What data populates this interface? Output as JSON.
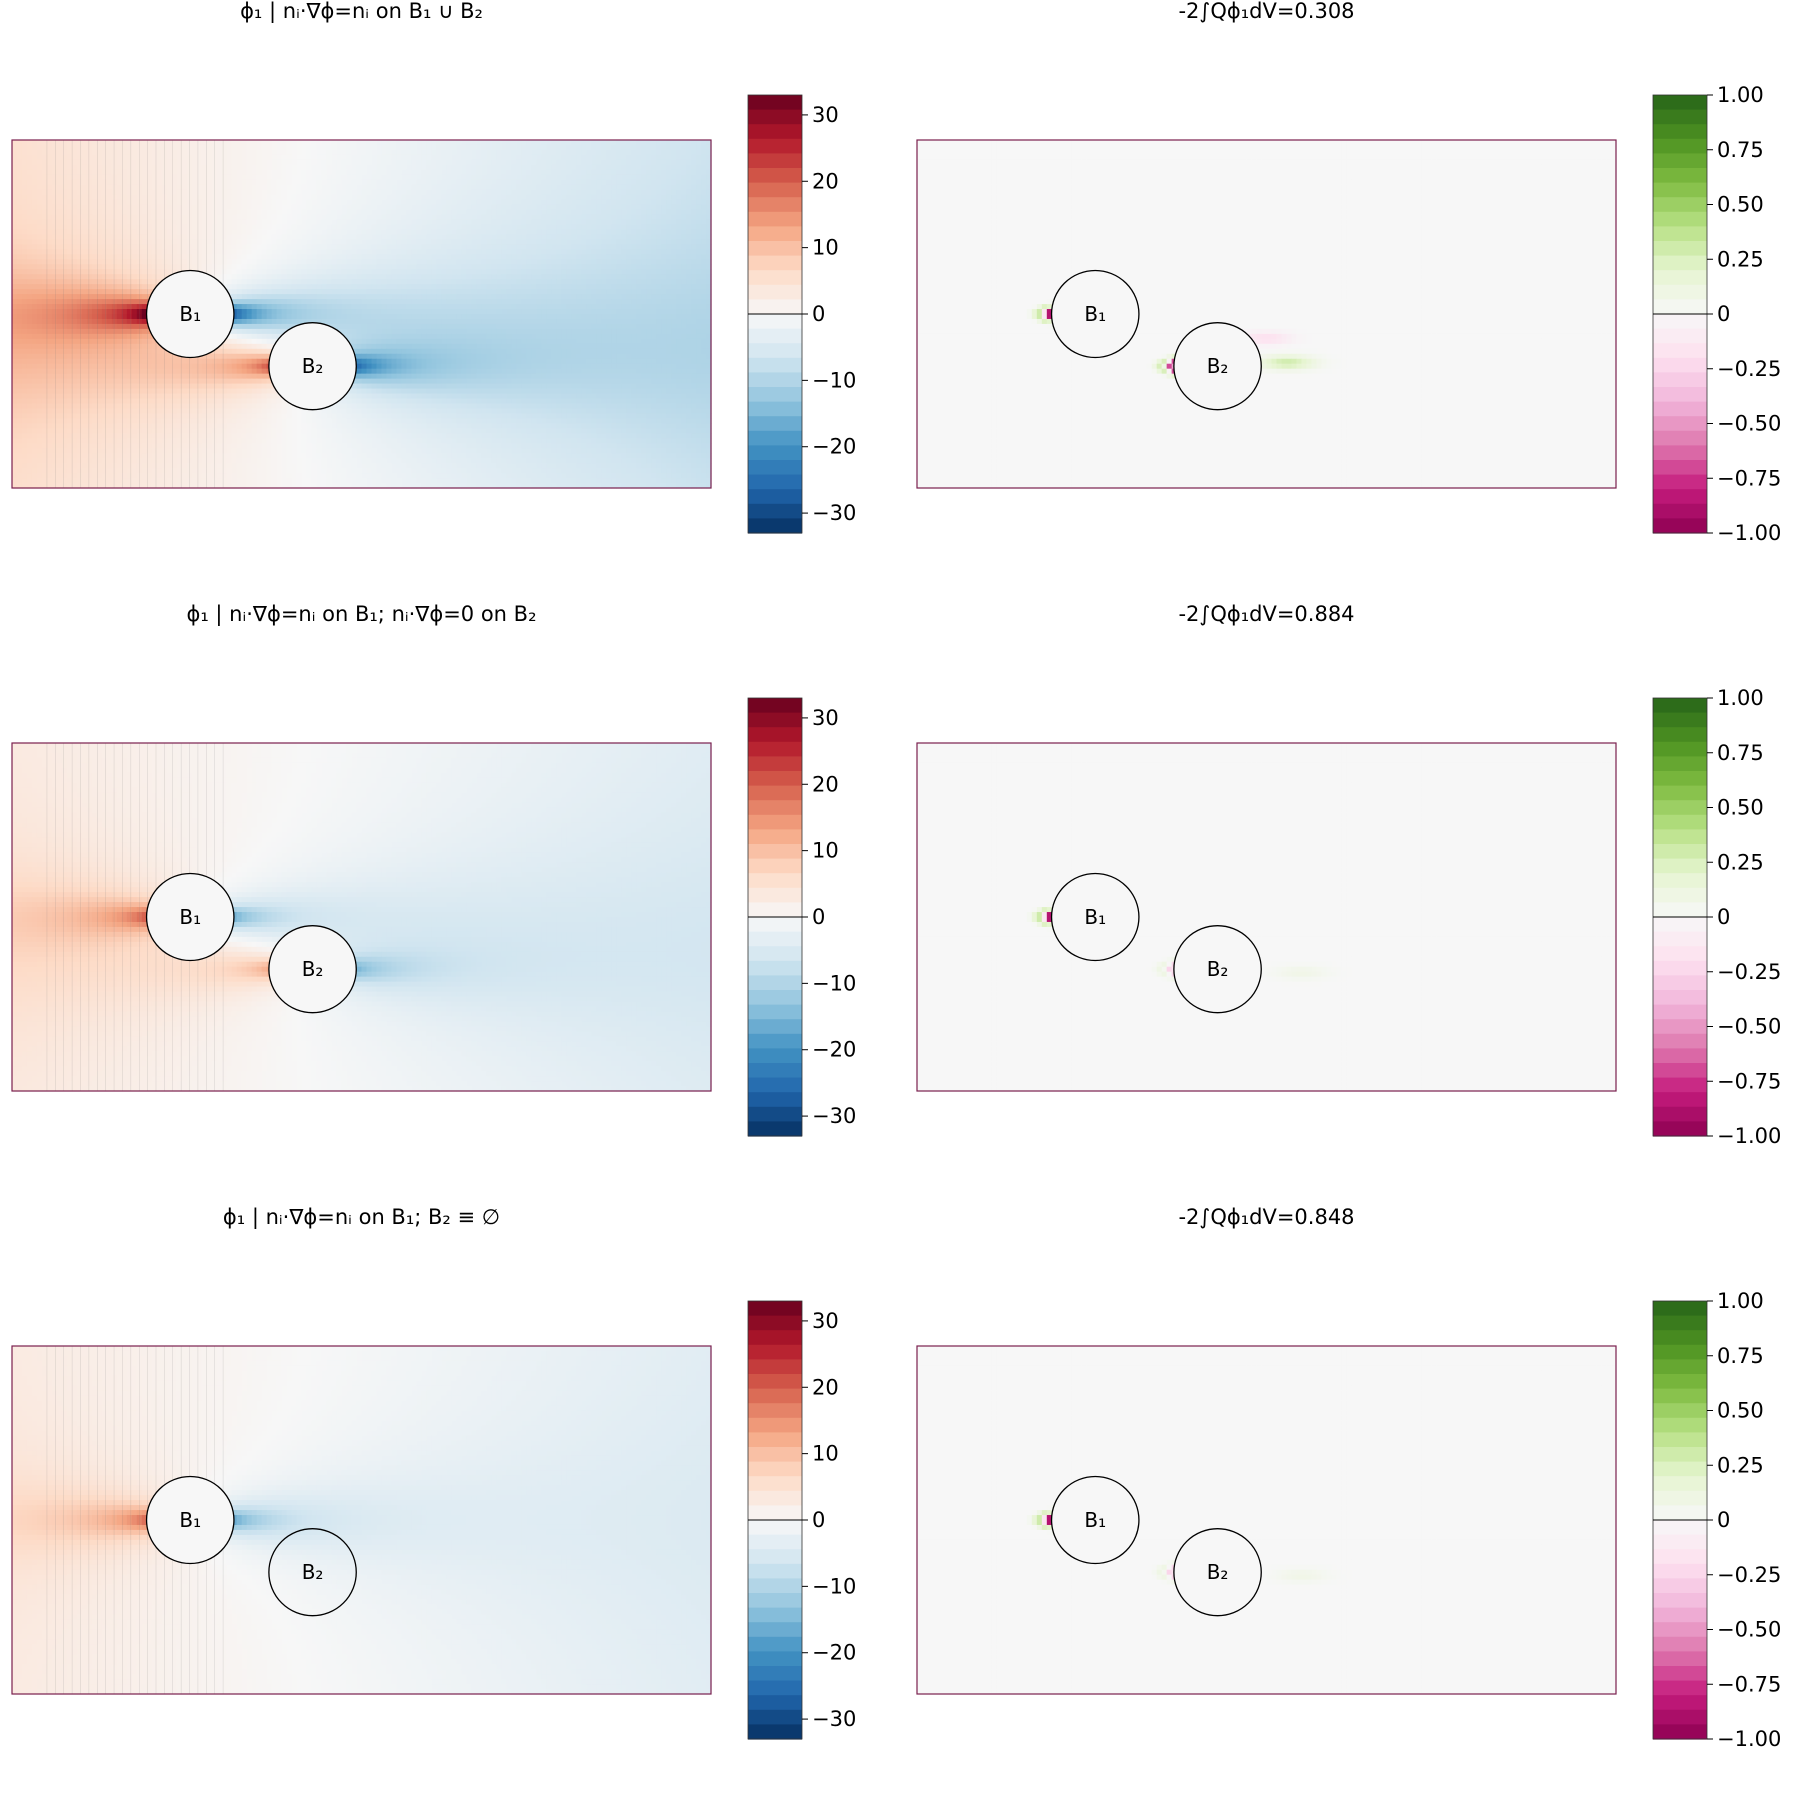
{
  "figure": {
    "rows": [
      {
        "left": {
          "title": "ϕ₁ | nᵢ·∇ϕ=nᵢ on B₁ ∪ B₂",
          "field": "phi1",
          "b2_filled": true,
          "scale": 1.0,
          "colorbar": {
            "cmap": "RdBu",
            "range": [
              -33,
              33
            ],
            "ticks": [
              30,
              20,
              10,
              0,
              -10,
              -20,
              -30
            ],
            "tick_labels": [
              "30",
              "20",
              "10",
              "0",
              "−10",
              "−20",
              "−30"
            ]
          }
        },
        "right": {
          "title": "-2∫Qϕ₁dV=0.308",
          "field": "Q",
          "b2_filled": true,
          "colorbar": {
            "cmap": "PiYG",
            "range": [
              -1,
              1
            ],
            "ticks": [
              1,
              0.75,
              0.5,
              0.25,
              0,
              -0.25,
              -0.5,
              -0.75,
              -1
            ],
            "tick_labels": [
              "1.00",
              "0.75",
              "0.50",
              "0.25",
              "0",
              "−0.25",
              "−0.50",
              "−0.75",
              "−1.00"
            ]
          }
        }
      },
      {
        "left": {
          "title": "ϕ₁ | nᵢ·∇ϕ=nᵢ on B₁; nᵢ·∇ϕ=0 on B₂",
          "field": "phi1",
          "b2_filled": true,
          "scale": 0.6,
          "colorbar": {
            "cmap": "RdBu",
            "range": [
              -33,
              33
            ],
            "ticks": [
              30,
              20,
              10,
              0,
              -10,
              -20,
              -30
            ],
            "tick_labels": [
              "30",
              "20",
              "10",
              "0",
              "−10",
              "−20",
              "−30"
            ]
          }
        },
        "right": {
          "title": "-2∫Qϕ₁dV=0.884",
          "field": "Q",
          "b2_filled": true,
          "colorbar": {
            "cmap": "PiYG",
            "range": [
              -1,
              1
            ],
            "ticks": [
              1,
              0.75,
              0.5,
              0.25,
              0,
              -0.25,
              -0.5,
              -0.75,
              -1
            ],
            "tick_labels": [
              "1.00",
              "0.75",
              "0.50",
              "0.25",
              "0",
              "−0.25",
              "−0.50",
              "−0.75",
              "−1.00"
            ]
          }
        }
      },
      {
        "left": {
          "title": "ϕ₁ | nᵢ·∇ϕ=nᵢ on B₁; B₂ ≡ ∅",
          "field": "phi1",
          "b2_filled": false,
          "scale": 0.6,
          "colorbar": {
            "cmap": "RdBu",
            "range": [
              -33,
              33
            ],
            "ticks": [
              30,
              20,
              10,
              0,
              -10,
              -20,
              -30
            ],
            "tick_labels": [
              "30",
              "20",
              "10",
              "0",
              "−10",
              "−20",
              "−30"
            ]
          }
        },
        "right": {
          "title": "-2∫Qϕ₁dV=0.848",
          "field": "Q",
          "b2_filled": true,
          "colorbar": {
            "cmap": "PiYG",
            "range": [
              -1,
              1
            ],
            "ticks": [
              1,
              0.75,
              0.5,
              0.25,
              0,
              -0.25,
              -0.5,
              -0.75,
              -1
            ],
            "tick_labels": [
              "1.00",
              "0.75",
              "0.50",
              "0.25",
              "0",
              "−0.25",
              "−0.50",
              "−0.75",
              "−1.00"
            ]
          }
        }
      }
    ]
  },
  "bodies": {
    "b1_label": "B₁",
    "b2_label": "B₂"
  },
  "colors": {
    "frame": "#7a1f4e",
    "circle_fill": "#f7f7f7",
    "rdbu": [
      "#67001f",
      "#b2182b",
      "#d6604d",
      "#f4a582",
      "#fddbc7",
      "#f7f7f7",
      "#d1e5f0",
      "#92c5de",
      "#4393c3",
      "#2166ac",
      "#053061"
    ],
    "piyg": [
      "#8e0152",
      "#c51b7d",
      "#de77ae",
      "#f1b6da",
      "#fde0ef",
      "#f7f7f7",
      "#e6f5d0",
      "#b8e186",
      "#7fbc41",
      "#4d9221",
      "#276419"
    ]
  },
  "chart_data": [
    {
      "type": "heatmap",
      "title": "ϕ₁ | nᵢ·∇ϕ=nᵢ on B₁ ∪ B₂",
      "colorbar_range": [
        -33,
        33
      ],
      "colorbar_ticks": [
        30,
        20,
        10,
        0,
        -10,
        -20,
        -30
      ]
    },
    {
      "type": "heatmap",
      "title": "-2∫Qϕ₁dV=0.308",
      "colorbar_range": [
        -1,
        1
      ],
      "colorbar_ticks": [
        1.0,
        0.75,
        0.5,
        0.25,
        0,
        -0.25,
        -0.5,
        -0.75,
        -1.0
      ]
    },
    {
      "type": "heatmap",
      "title": "ϕ₁ | nᵢ·∇ϕ=nᵢ on B₁; nᵢ·∇ϕ=0 on B₂",
      "colorbar_range": [
        -33,
        33
      ],
      "colorbar_ticks": [
        30,
        20,
        10,
        0,
        -10,
        -20,
        -30
      ]
    },
    {
      "type": "heatmap",
      "title": "-2∫Qϕ₁dV=0.884",
      "colorbar_range": [
        -1,
        1
      ],
      "colorbar_ticks": [
        1.0,
        0.75,
        0.5,
        0.25,
        0,
        -0.25,
        -0.5,
        -0.75,
        -1.0
      ]
    },
    {
      "type": "heatmap",
      "title": "ϕ₁ | nᵢ·∇ϕ=nᵢ on B₁; B₂ ≡ ∅",
      "colorbar_range": [
        -33,
        33
      ],
      "colorbar_ticks": [
        30,
        20,
        10,
        0,
        -10,
        -20,
        -30
      ]
    },
    {
      "type": "heatmap",
      "title": "-2∫Qϕ₁dV=0.848",
      "colorbar_range": [
        -1,
        1
      ],
      "colorbar_ticks": [
        1.0,
        0.75,
        0.5,
        0.25,
        0,
        -0.25,
        -0.5,
        -0.75,
        -1.0
      ]
    }
  ]
}
